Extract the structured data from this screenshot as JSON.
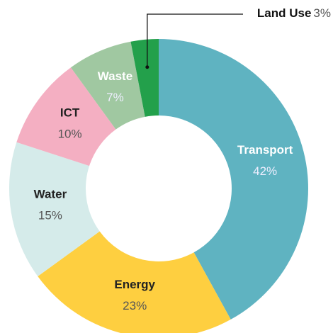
{
  "chart_data": {
    "type": "pie",
    "categories": [
      "Transport",
      "Energy",
      "Water",
      "ICT",
      "Waste",
      "Land Use"
    ],
    "values": [
      42,
      23,
      15,
      10,
      7,
      3
    ],
    "value_labels": [
      "42%",
      "23%",
      "15%",
      "10%",
      "7%",
      "3%"
    ],
    "colors": [
      "#5fb3c1",
      "#fecf40",
      "#d5ebea",
      "#f4afc2",
      "#a0c8a1",
      "#23a04b"
    ]
  }
}
